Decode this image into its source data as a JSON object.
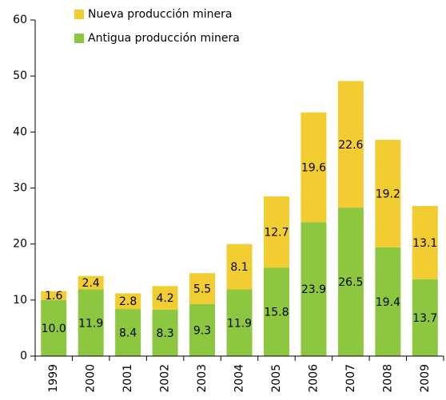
{
  "chart_data": {
    "type": "stacked_bar",
    "categories": [
      "1999",
      "2000",
      "2001",
      "2002",
      "2003",
      "2004",
      "2005",
      "2006",
      "2007",
      "2008",
      "2009"
    ],
    "series": [
      {
        "name": "Antigua producción minera",
        "color": "#8dc63f",
        "values": [
          10.0,
          11.9,
          8.4,
          8.3,
          9.3,
          11.9,
          15.8,
          23.9,
          26.5,
          19.4,
          13.7
        ],
        "value_labels": [
          "10.0",
          "11.9",
          "8.4",
          "8.3",
          "9.3",
          "11.9",
          "15.8",
          "23.9",
          "26.5",
          "19.4",
          "13.7"
        ]
      },
      {
        "name": "Nueva producción minera",
        "color": "#f2cd32",
        "values": [
          1.6,
          2.4,
          2.8,
          4.2,
          5.5,
          8.1,
          12.7,
          19.6,
          22.6,
          19.2,
          13.1
        ]
      }
    ],
    "ylim": [
      0,
      60
    ],
    "yticks": [
      0,
      10,
      20,
      30,
      40,
      50,
      60
    ],
    "legend": "top-left"
  }
}
